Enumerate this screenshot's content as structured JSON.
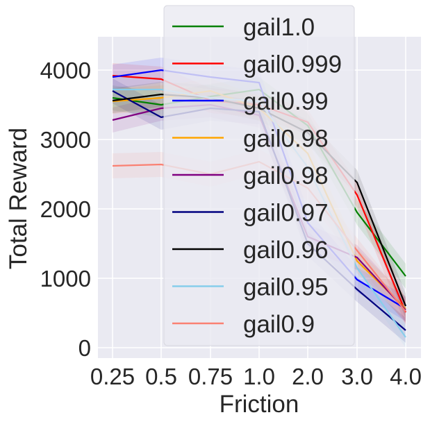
{
  "chart_data": {
    "type": "line",
    "xlabel": "Friction",
    "ylabel": "Total Reward",
    "categories": [
      "0.25",
      "0.5",
      "0.75",
      "1.0",
      "2.0",
      "3.0",
      "4.0"
    ],
    "ylim": [
      -150,
      4480
    ],
    "yticks": [
      0,
      1000,
      2000,
      3000,
      4000
    ],
    "grid": true,
    "legend_placement": "top-right",
    "series": [
      {
        "name": "gail1.0",
        "color": "#008000",
        "values": [
          3600,
          3500,
          3620,
          3720,
          3200,
          1950,
          1030
        ]
      },
      {
        "name": "gail0.999",
        "color": "#ff0000",
        "values": [
          3920,
          3870,
          3560,
          3500,
          3250,
          2200,
          510
        ]
      },
      {
        "name": "gail0.99",
        "color": "#0000ff",
        "values": [
          3900,
          4000,
          3900,
          3820,
          1800,
          980,
          560
        ]
      },
      {
        "name": "gail0.98",
        "color": "#ffa500",
        "values": [
          3550,
          3600,
          3700,
          3450,
          2800,
          1250,
          560
        ]
      },
      {
        "name": "gail0.98",
        "color": "#800080",
        "values": [
          3280,
          3450,
          3500,
          3350,
          1600,
          1300,
          540
        ]
      },
      {
        "name": "gail0.97",
        "color": "#000080",
        "values": [
          3700,
          3320,
          3450,
          3400,
          1500,
          840,
          250
        ]
      },
      {
        "name": "gail0.96",
        "color": "#000000",
        "values": [
          3560,
          3650,
          3600,
          3450,
          3100,
          2380,
          600
        ]
      },
      {
        "name": "gail0.95",
        "color": "#87ceeb",
        "values": [
          3720,
          3720,
          3600,
          3550,
          2600,
          1150,
          150
        ]
      },
      {
        "name": "gail0.9",
        "color": "#fa8072",
        "values": [
          2620,
          2640,
          2500,
          2680,
          2300,
          1400,
          520
        ]
      }
    ]
  }
}
